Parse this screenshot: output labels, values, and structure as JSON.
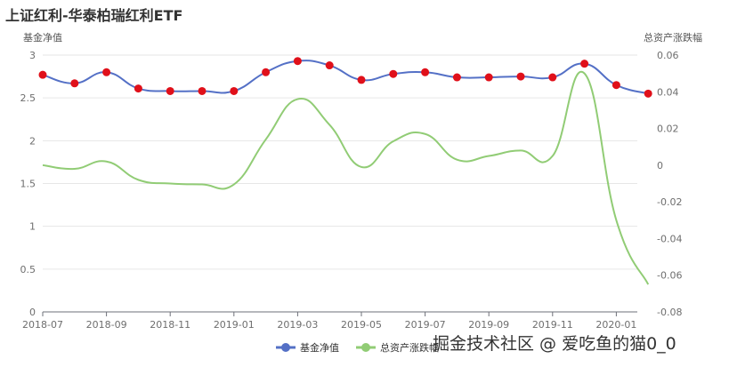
{
  "title": "上证红利-华泰柏瑞红利ETF",
  "watermark": "掘金技术社区 @ 爱吃鱼的猫0_0",
  "colors": {
    "nav": "#5470c6",
    "nav_point": "#e0101a",
    "growth": "#91cc75",
    "grid": "#e6e6e6",
    "axis": "#6e7079"
  },
  "chart_data": {
    "type": "line",
    "ylabel": "基金净值",
    "y2label": "总资产涨跌幅",
    "ylim": [
      0,
      3
    ],
    "y_ticks": [
      0,
      0.5,
      1,
      1.5,
      2,
      2.5,
      3
    ],
    "y_tick_labels": [
      "0",
      "0.5",
      "1",
      "1.5",
      "2",
      "2.5",
      "3"
    ],
    "y2lim": [
      -0.08,
      0.06
    ],
    "y2_ticks": [
      -0.08,
      -0.06,
      -0.04,
      -0.02,
      0,
      0.02,
      0.04,
      0.06
    ],
    "y2_tick_labels": [
      "-0.08",
      "-0.06",
      "-0.04",
      "-0.02",
      "0",
      "0.02",
      "0.04",
      "0.06"
    ],
    "x_ticks": [
      "2018-07",
      "2018-09",
      "2018-11",
      "2019-01",
      "2019-03",
      "2019-05",
      "2019-07",
      "2019-09",
      "2019-11",
      "2020-01"
    ],
    "x_tick_months": [
      0,
      2,
      4,
      6,
      8,
      10,
      12,
      14,
      16,
      18
    ],
    "legend_position": "bottom-center",
    "grid": true,
    "series": [
      {
        "name": "基金净值",
        "axis": "left",
        "x": [
          0,
          1,
          2,
          3,
          4,
          5,
          6,
          7,
          8,
          9,
          10,
          11,
          12,
          13,
          14,
          15,
          16,
          17,
          18,
          19
        ],
        "values": [
          2.77,
          2.67,
          2.8,
          2.61,
          2.58,
          2.58,
          2.58,
          2.8,
          2.93,
          2.88,
          2.71,
          2.78,
          2.8,
          2.74,
          2.74,
          2.75,
          2.74,
          2.9,
          2.65,
          2.55
        ]
      },
      {
        "name": "总资产涨跌幅",
        "axis": "right",
        "x": [
          0,
          1,
          2,
          3,
          4,
          5,
          6,
          7,
          8,
          9,
          10,
          11,
          12,
          13,
          14,
          15,
          16,
          17,
          18,
          19
        ],
        "values": [
          0.0,
          -0.002,
          0.002,
          -0.008,
          -0.01,
          -0.0105,
          -0.0105,
          0.014,
          0.036,
          0.022,
          -0.001,
          0.013,
          0.017,
          0.003,
          0.005,
          0.008,
          0.005,
          0.05,
          -0.03,
          -0.065
        ]
      }
    ]
  }
}
